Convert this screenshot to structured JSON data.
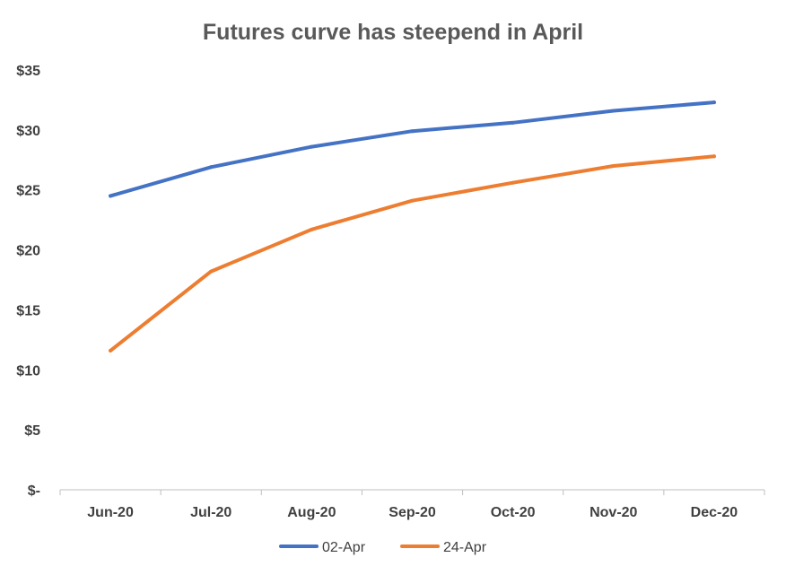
{
  "chart_data": {
    "type": "line",
    "title": "Futures curve has steepend in April",
    "xlabel": "",
    "ylabel": "",
    "categories": [
      "Jun-20",
      "Jul-20",
      "Aug-20",
      "Sep-20",
      "Oct-20",
      "Nov-20",
      "Dec-20"
    ],
    "yticks": [
      0,
      5,
      10,
      15,
      20,
      25,
      30,
      35
    ],
    "ytick_labels": [
      "$-",
      "$5",
      "$10",
      "$15",
      "$20",
      "$25",
      "$30",
      "$35"
    ],
    "ylim": [
      0,
      35
    ],
    "grid": false,
    "legend_position": "bottom",
    "series": [
      {
        "name": "02-Apr",
        "color": "#4472C4",
        "values": [
          24.5,
          26.9,
          28.6,
          29.9,
          30.6,
          31.6,
          32.3
        ]
      },
      {
        "name": "24-Apr",
        "color": "#ED7D31",
        "values": [
          11.6,
          18.2,
          21.7,
          24.1,
          25.6,
          27.0,
          27.8
        ]
      }
    ]
  }
}
